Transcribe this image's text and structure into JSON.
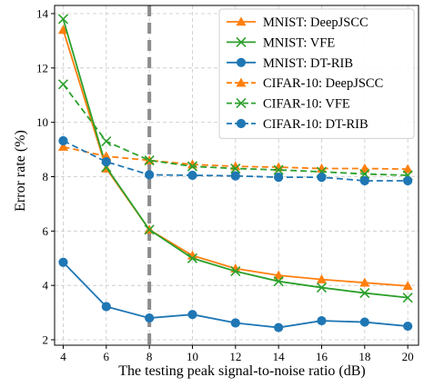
{
  "chart_data": {
    "type": "line",
    "title": "",
    "xlabel": "The testing peak signal-to-noise ratio (dB)",
    "ylabel": "Error rate (%)",
    "x": [
      4,
      6,
      8,
      10,
      12,
      14,
      16,
      18,
      20
    ],
    "xlim": [
      3.6,
      20.5
    ],
    "ylim": [
      1.8,
      14.3
    ],
    "xticks": [
      4,
      6,
      8,
      10,
      12,
      14,
      16,
      18,
      20
    ],
    "yticks": [
      2,
      4,
      6,
      8,
      10,
      12,
      14
    ],
    "grid": true,
    "legend_position": "top-right",
    "reference_line": {
      "x": 8,
      "style": "dashed",
      "color": "#8c8c8c"
    },
    "series": [
      {
        "name": "MNIST: DeepJSCC",
        "color": "#ff7f0e",
        "marker": "triangle",
        "dash": "solid",
        "values": [
          13.4,
          8.3,
          6.05,
          5.1,
          4.62,
          4.37,
          4.22,
          4.1,
          3.98
        ]
      },
      {
        "name": "MNIST: VFE",
        "color": "#2ca02c",
        "marker": "x",
        "dash": "solid",
        "values": [
          13.8,
          8.35,
          6.05,
          5.0,
          4.52,
          4.15,
          3.92,
          3.72,
          3.55
        ]
      },
      {
        "name": "MNIST: DT-RIB",
        "color": "#1f77b4",
        "marker": "circle",
        "dash": "solid",
        "values": [
          4.85,
          3.22,
          2.8,
          2.93,
          2.62,
          2.45,
          2.7,
          2.65,
          2.5
        ]
      },
      {
        "name": "CIFAR-10: DeepJSCC",
        "color": "#ff7f0e",
        "marker": "triangle",
        "dash": "dashed",
        "values": [
          9.1,
          8.75,
          8.6,
          8.45,
          8.38,
          8.35,
          8.3,
          8.3,
          8.28
        ]
      },
      {
        "name": "CIFAR-10: VFE",
        "color": "#2ca02c",
        "marker": "x",
        "dash": "dashed",
        "values": [
          11.4,
          9.3,
          8.6,
          8.38,
          8.3,
          8.25,
          8.18,
          8.1,
          8.05
        ]
      },
      {
        "name": "CIFAR-10: DT-RIB",
        "color": "#1f77b4",
        "marker": "circle",
        "dash": "dashed",
        "values": [
          9.32,
          8.55,
          8.07,
          8.05,
          8.03,
          7.98,
          7.98,
          7.85,
          7.85
        ]
      }
    ]
  }
}
